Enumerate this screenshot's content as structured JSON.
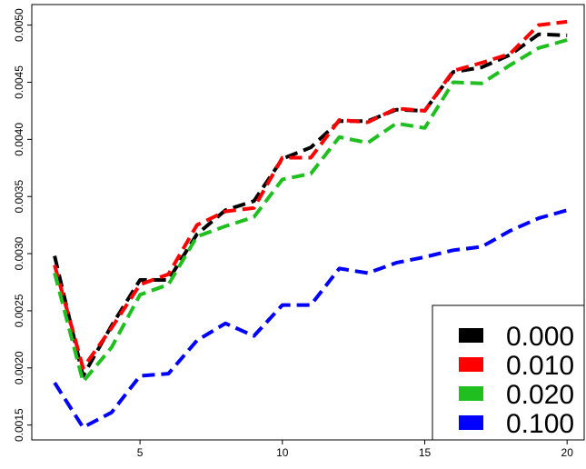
{
  "chart_data": {
    "type": "line",
    "title": "",
    "xlabel": "",
    "ylabel": "",
    "x": [
      2,
      3,
      4,
      5,
      6,
      7,
      8,
      9,
      10,
      11,
      12,
      13,
      14,
      15,
      16,
      17,
      18,
      19,
      20
    ],
    "xlim": [
      1.2,
      20.6
    ],
    "ylim": [
      0.00137,
      0.00518
    ],
    "x_ticks": [
      5,
      10,
      15,
      20
    ],
    "x_tick_labels": [
      "5",
      "10",
      "15",
      "20"
    ],
    "y_ticks": [
      0.0015,
      0.002,
      0.0025,
      0.003,
      0.0035,
      0.004,
      0.0045,
      0.005
    ],
    "y_tick_labels": [
      "0.0015",
      "0.0020",
      "0.0025",
      "0.0030",
      "0.0035",
      "0.0040",
      "0.0045",
      "0.0050"
    ],
    "grid": false,
    "line_style": "dashed",
    "legend_position": "bottom-right",
    "series": [
      {
        "name": "0.000",
        "color": "#000000",
        "values": [
          0.00298,
          0.00193,
          0.00237,
          0.00277,
          0.00277,
          0.00317,
          0.00338,
          0.00346,
          0.00383,
          0.00393,
          0.00416,
          0.00416,
          0.00426,
          0.00425,
          0.00459,
          0.00463,
          0.00474,
          0.00492,
          0.00491
        ]
      },
      {
        "name": "0.010",
        "color": "#ff0000",
        "values": [
          0.0029,
          0.002,
          0.00235,
          0.00273,
          0.00282,
          0.00325,
          0.00337,
          0.0034,
          0.00384,
          0.00384,
          0.00417,
          0.00415,
          0.00427,
          0.00425,
          0.0046,
          0.00467,
          0.00475,
          0.005,
          0.00503
        ]
      },
      {
        "name": "0.020",
        "color": "#1fbf1f",
        "values": [
          0.00283,
          0.00188,
          0.00218,
          0.00264,
          0.00273,
          0.00315,
          0.00324,
          0.00332,
          0.00365,
          0.0037,
          0.00402,
          0.00397,
          0.00414,
          0.0041,
          0.0045,
          0.00449,
          0.00465,
          0.0048,
          0.00487
        ]
      },
      {
        "name": "0.100",
        "color": "#0000ff",
        "values": [
          0.00187,
          0.00148,
          0.00161,
          0.00193,
          0.00195,
          0.00224,
          0.00239,
          0.00228,
          0.00255,
          0.00255,
          0.00287,
          0.00283,
          0.00292,
          0.00297,
          0.00303,
          0.00306,
          0.0032,
          0.00331,
          0.00338
        ]
      }
    ]
  }
}
